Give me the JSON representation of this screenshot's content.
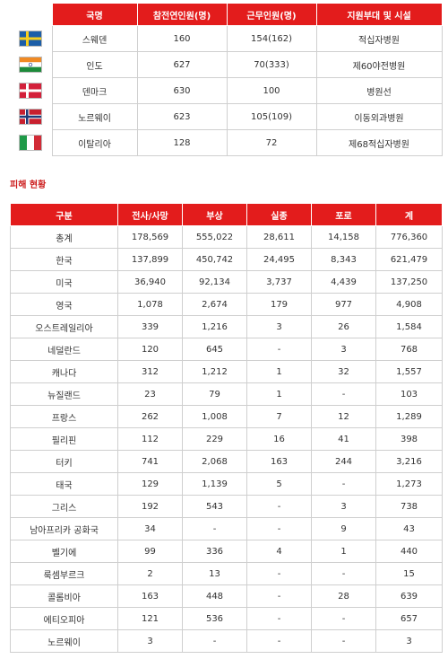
{
  "top_table": {
    "headers": [
      "국명",
      "참전연인원(명)",
      "근무인원(명)",
      "지원부대 및 시설"
    ],
    "rows": [
      {
        "flag": "sweden-flag",
        "cells": [
          "스웨덴",
          "160",
          "154(162)",
          "적십자병원"
        ]
      },
      {
        "flag": "india-flag",
        "cells": [
          "인도",
          "627",
          "70(333)",
          "제60야전병원"
        ]
      },
      {
        "flag": "denmark-flag",
        "cells": [
          "덴마크",
          "630",
          "100",
          "병원선"
        ]
      },
      {
        "flag": "norway-flag",
        "cells": [
          "노르웨이",
          "623",
          "105(109)",
          "이동외과병원"
        ]
      },
      {
        "flag": "italy-flag",
        "cells": [
          "이탈리아",
          "128",
          "72",
          "제68적십자병원"
        ]
      }
    ]
  },
  "section_title": "피해 현황",
  "casualty_table": {
    "headers": [
      "구분",
      "전사/사망",
      "부상",
      "실종",
      "포로",
      "계"
    ],
    "rows": [
      [
        "총계",
        "178,569",
        "555,022",
        "28,611",
        "14,158",
        "776,360"
      ],
      [
        "한국",
        "137,899",
        "450,742",
        "24,495",
        "8,343",
        "621,479"
      ],
      [
        "미국",
        "36,940",
        "92,134",
        "3,737",
        "4,439",
        "137,250"
      ],
      [
        "영국",
        "1,078",
        "2,674",
        "179",
        "977",
        "4,908"
      ],
      [
        "오스트레일리아",
        "339",
        "1,216",
        "3",
        "26",
        "1,584"
      ],
      [
        "네덜란드",
        "120",
        "645",
        "-",
        "3",
        "768"
      ],
      [
        "캐나다",
        "312",
        "1,212",
        "1",
        "32",
        "1,557"
      ],
      [
        "뉴질랜드",
        "23",
        "79",
        "1",
        "-",
        "103"
      ],
      [
        "프랑스",
        "262",
        "1,008",
        "7",
        "12",
        "1,289"
      ],
      [
        "필리핀",
        "112",
        "229",
        "16",
        "41",
        "398"
      ],
      [
        "터키",
        "741",
        "2,068",
        "163",
        "244",
        "3,216"
      ],
      [
        "태국",
        "129",
        "1,139",
        "5",
        "-",
        "1,273"
      ],
      [
        "그리스",
        "192",
        "543",
        "-",
        "3",
        "738"
      ],
      [
        "남아프리카 공화국",
        "34",
        "-",
        "-",
        "9",
        "43"
      ],
      [
        "벨기에",
        "99",
        "336",
        "4",
        "1",
        "440"
      ],
      [
        "룩셈부르크",
        "2",
        "13",
        "-",
        "-",
        "15"
      ],
      [
        "콜롬비아",
        "163",
        "448",
        "-",
        "28",
        "639"
      ],
      [
        "에티오피아",
        "121",
        "536",
        "-",
        "-",
        "657"
      ],
      [
        "노르웨이",
        "3",
        "-",
        "-",
        "-",
        "3"
      ]
    ]
  },
  "colors": {
    "header_red": "#e31c1c",
    "title_red": "#cc1a1a",
    "border_gray": "#cfcfcf"
  }
}
